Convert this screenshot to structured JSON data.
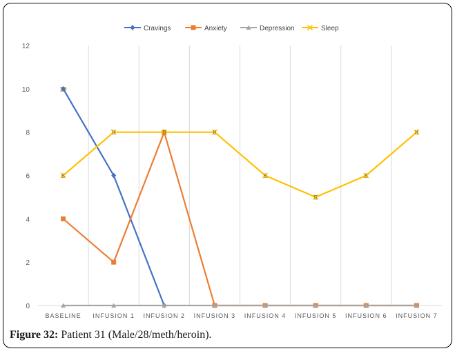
{
  "caption": {
    "label": "Figure 32:",
    "text": "Patient 31 (Male/28/meth/heroin)."
  },
  "chart_data": {
    "type": "line",
    "categories": [
      "BASELINE",
      "INFUSION 1",
      "INFUSION 2",
      "INFUSION 3",
      "INFUSION 4",
      "INFUSION 5",
      "INFUSION 6",
      "INFUSION 7"
    ],
    "ylim": [
      0,
      12
    ],
    "yticks": [
      0,
      2,
      4,
      6,
      8,
      10,
      12
    ],
    "grid": "vertical",
    "legend_position": "top",
    "series": [
      {
        "name": "Cravings",
        "color": "#4472C4",
        "marker": "diamond",
        "values": [
          10,
          6,
          0,
          null,
          null,
          null,
          null,
          null
        ],
        "labels": [
          10,
          null,
          null,
          null,
          null,
          null,
          null,
          null
        ]
      },
      {
        "name": "Anxiety",
        "color": "#ED7D31",
        "marker": "square",
        "values": [
          4,
          2,
          8,
          0,
          0,
          0,
          0,
          0
        ],
        "labels": [
          null,
          null,
          null,
          null,
          null,
          null,
          null,
          null
        ]
      },
      {
        "name": "Depression",
        "color": "#A5A5A5",
        "marker": "triangle",
        "values": [
          0,
          0,
          0,
          0,
          0,
          0,
          0,
          0
        ],
        "labels": [
          null,
          null,
          null,
          null,
          null,
          null,
          null,
          null
        ]
      },
      {
        "name": "Sleep",
        "color": "#FFC000",
        "marker": "x",
        "values": [
          6,
          8,
          8,
          8,
          6,
          5,
          6,
          8
        ],
        "labels": [
          6,
          8,
          8,
          8,
          6,
          5,
          6,
          8
        ]
      }
    ]
  }
}
